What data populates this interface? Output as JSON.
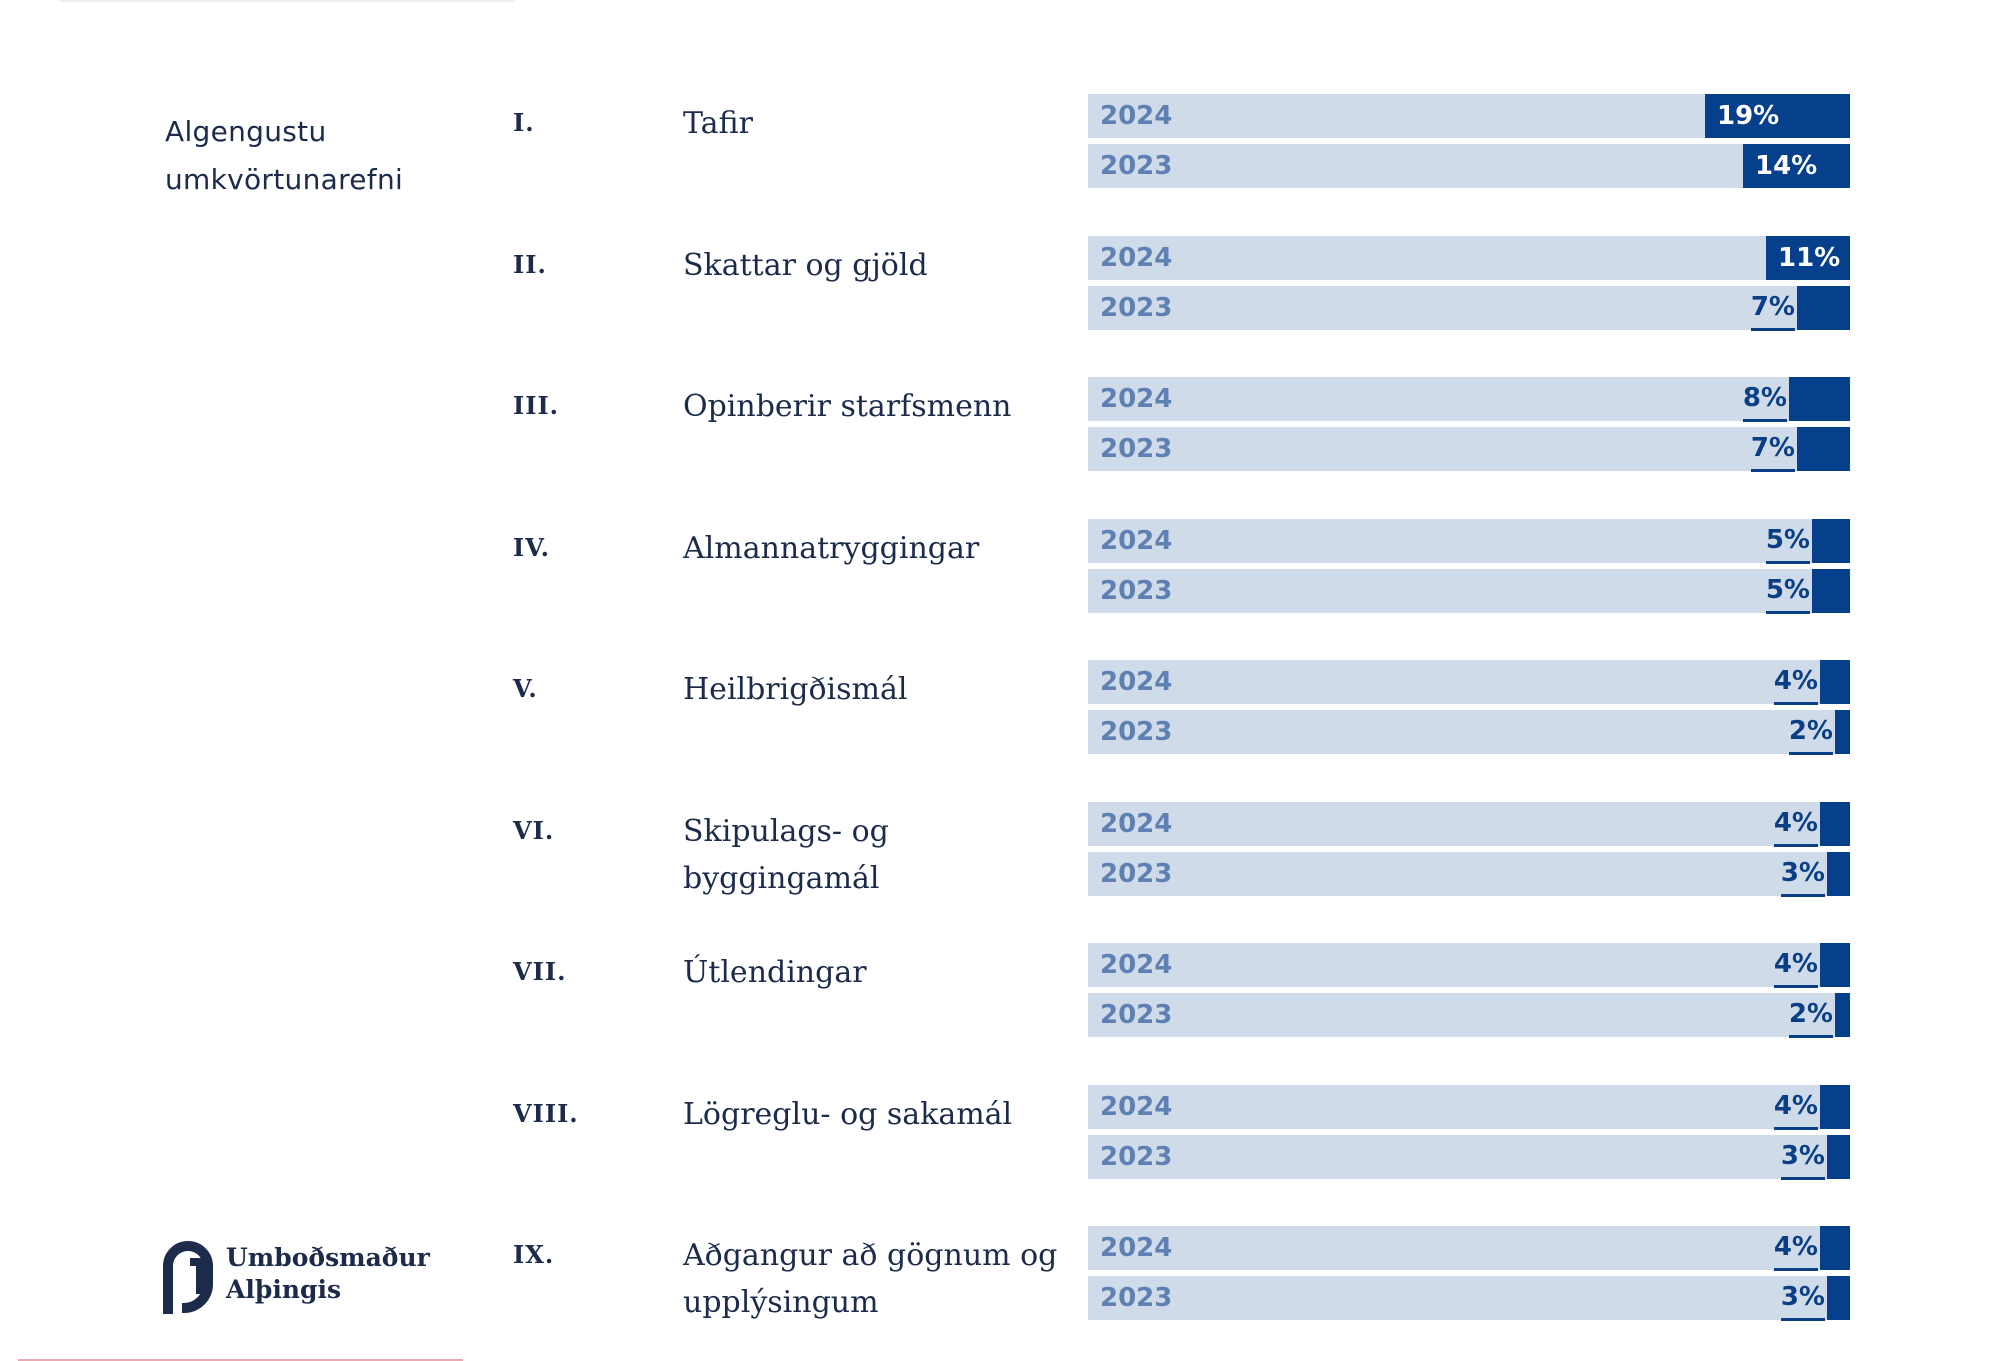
{
  "side_title": {
    "line1": "Algengustu",
    "line2": "umkvörtunarefni"
  },
  "logo": {
    "line1": "Umboðsmaður",
    "line2": "Alþingis"
  },
  "colors": {
    "bar_bg": "#cfdbe9",
    "bar_fill": "#063f8c",
    "year_text": "#5e80b2",
    "text": "#1c2b4a"
  },
  "chart_data": {
    "type": "bar",
    "orientation": "horizontal",
    "title": "",
    "value_unit": "%",
    "xlim": [
      0,
      100
    ],
    "years": [
      "2024",
      "2023"
    ],
    "categories": [
      {
        "numeral": "I.",
        "label": "Tafir",
        "values": [
          19,
          14
        ],
        "labels": [
          "19%",
          "14%"
        ]
      },
      {
        "numeral": "II.",
        "label": "Skattar og gjöld",
        "values": [
          11,
          7
        ],
        "labels": [
          "11%",
          "7%"
        ]
      },
      {
        "numeral": "III.",
        "label": "Opinberir starfsmenn",
        "values": [
          8,
          7
        ],
        "labels": [
          "8%",
          "7%"
        ]
      },
      {
        "numeral": "IV.",
        "label": "Almannatryggingar",
        "values": [
          5,
          5
        ],
        "labels": [
          "5%",
          "5%"
        ]
      },
      {
        "numeral": "V.",
        "label": "Heilbrigðismál",
        "values": [
          4,
          2
        ],
        "labels": [
          "4%",
          "2%"
        ]
      },
      {
        "numeral": "VI.",
        "label": "Skipulags- og byggingamál",
        "values": [
          4,
          3
        ],
        "labels": [
          "4%",
          "3%"
        ]
      },
      {
        "numeral": "VII.",
        "label": "Útlendingar",
        "values": [
          4,
          2
        ],
        "labels": [
          "4%",
          "2%"
        ]
      },
      {
        "numeral": "VIII.",
        "label": "Lögreglu- og sakamál",
        "values": [
          4,
          3
        ],
        "labels": [
          "4%",
          "3%"
        ]
      },
      {
        "numeral": "IX.",
        "label": "Aðgangur að gögnum og upplýsingum",
        "values": [
          4,
          3
        ],
        "labels": [
          "4%",
          "3%"
        ]
      }
    ]
  }
}
